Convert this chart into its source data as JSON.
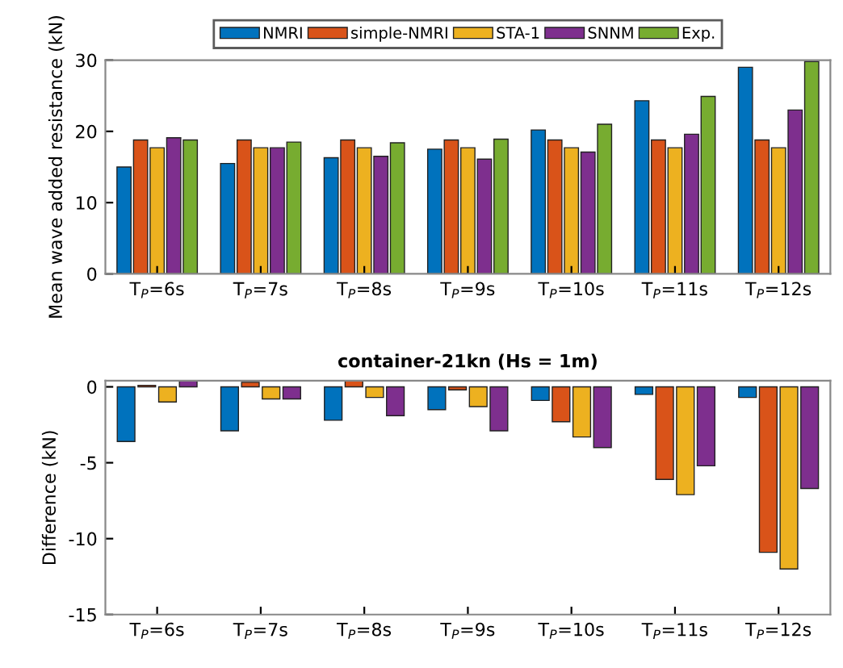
{
  "chart_data": [
    {
      "type": "bar",
      "ylabel": "Mean wave added resistance (kN)",
      "categories": [
        "T$_{P}$=6s",
        "T$_{P}$=7s",
        "T$_{P}$=8s",
        "T$_{P}$=9s",
        "T$_{P}$=10s",
        "T$_{P}$=11s",
        "T$_{P}$=12s"
      ],
      "series": [
        {
          "name": "NMRI",
          "color": "#0072bd",
          "values": [
            15.0,
            15.5,
            16.3,
            17.5,
            20.2,
            24.3,
            29.0
          ]
        },
        {
          "name": "simple-NMRI",
          "color": "#d95319",
          "values": [
            18.8,
            18.8,
            18.8,
            18.8,
            18.8,
            18.8,
            18.8
          ]
        },
        {
          "name": "STA-1",
          "color": "#edb120",
          "values": [
            17.7,
            17.7,
            17.7,
            17.7,
            17.7,
            17.7,
            17.7
          ]
        },
        {
          "name": "SNNM",
          "color": "#7e2f8e",
          "values": [
            19.1,
            17.7,
            16.5,
            16.1,
            17.1,
            19.6,
            23.0
          ]
        },
        {
          "name": "Exp.",
          "color": "#77ac30",
          "values": [
            18.8,
            18.5,
            18.4,
            18.9,
            21.0,
            24.9,
            29.8
          ]
        }
      ],
      "ylim": [
        0,
        30
      ],
      "yticks": [
        0,
        10,
        20,
        30
      ],
      "grid": false,
      "legend": "top"
    },
    {
      "type": "bar",
      "title": "container-21kn (Hs = 1m)",
      "ylabel": "Difference (kN)",
      "categories": [
        "T$_{P}$=6s",
        "T$_{P}$=7s",
        "T$_{P}$=8s",
        "T$_{P}$=9s",
        "T$_{P}$=10s",
        "T$_{P}$=11s",
        "T$_{P}$=12s"
      ],
      "series": [
        {
          "color": "#0072bd",
          "values": [
            -3.6,
            -2.9,
            -2.2,
            -1.5,
            -0.9,
            -0.5,
            -0.7
          ]
        },
        {
          "color": "#d95319",
          "values": [
            0.1,
            0.3,
            0.4,
            -0.2,
            -2.3,
            -6.1,
            -10.9
          ]
        },
        {
          "color": "#edb120",
          "values": [
            -1.0,
            -0.8,
            -0.7,
            -1.3,
            -3.3,
            -7.1,
            -12.0
          ]
        },
        {
          "color": "#7e2f8e",
          "values": [
            0.4,
            -0.8,
            -1.9,
            -2.9,
            -4.0,
            -5.2,
            -6.7
          ]
        }
      ],
      "ylim": [
        -15,
        0.4
      ],
      "yticks": [
        -15,
        -10,
        -5,
        0
      ],
      "grid": false,
      "legend": false
    }
  ]
}
